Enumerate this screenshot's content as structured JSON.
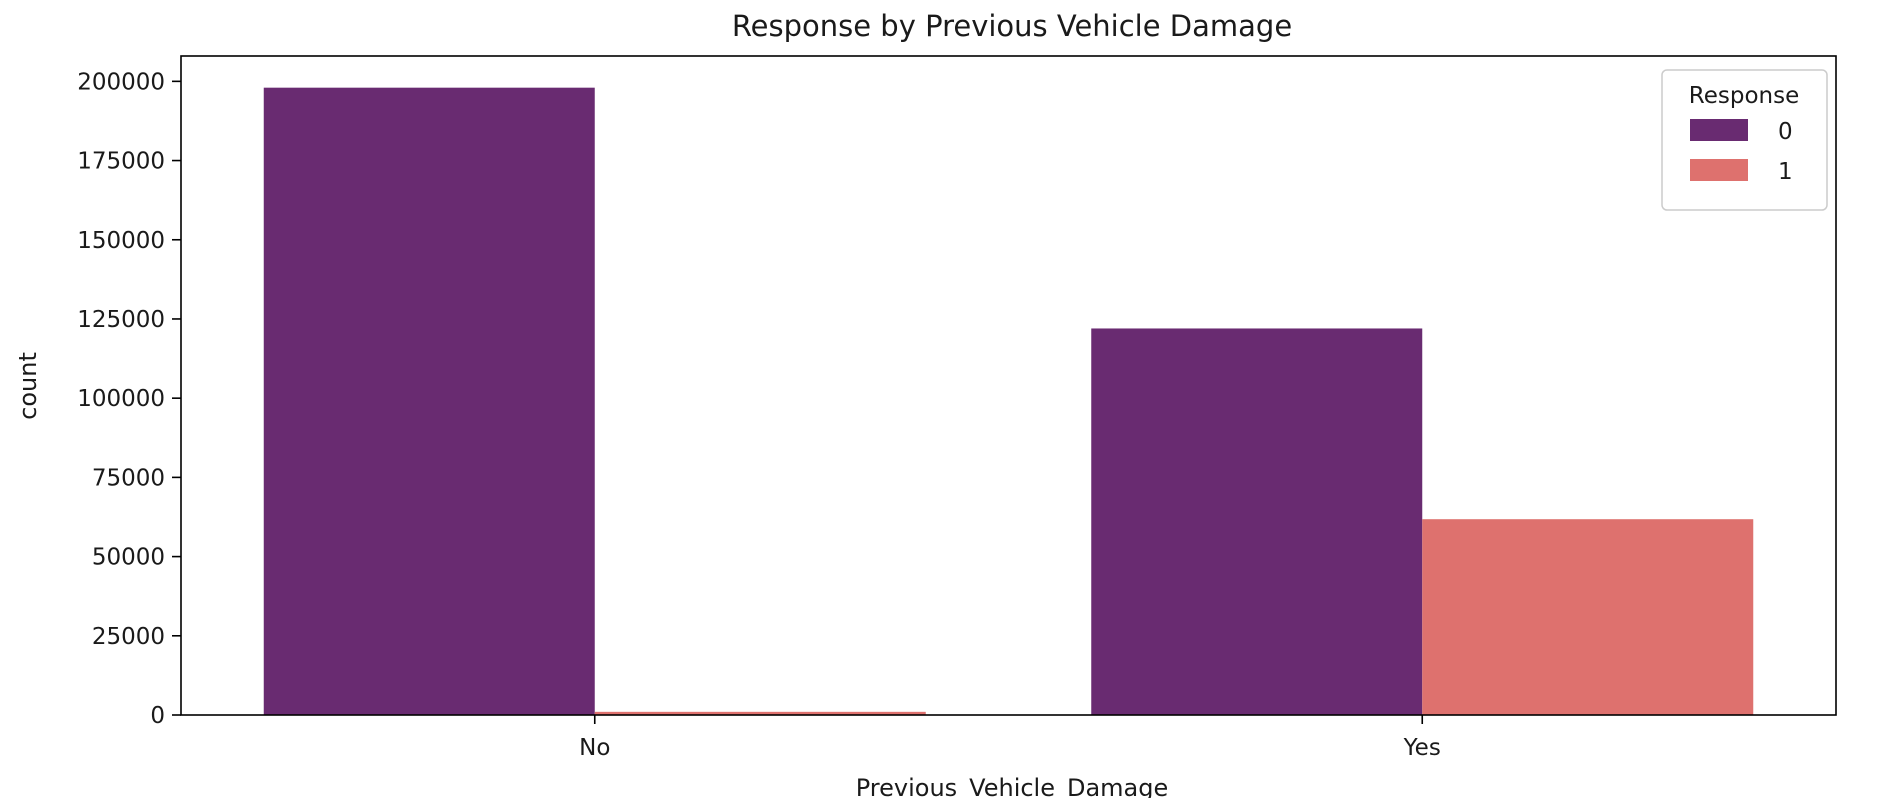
{
  "chart_data": {
    "type": "bar",
    "title": "Response by Previous Vehicle Damage",
    "xlabel": "Previous_Vehicle_Damage",
    "ylabel": "count",
    "categories": [
      "No",
      "Yes"
    ],
    "series": [
      {
        "name": "0",
        "color": "#692b71",
        "values": [
          198000,
          122000
        ]
      },
      {
        "name": "1",
        "color": "#de716e",
        "values": [
          1000,
          61800
        ]
      }
    ],
    "ylim": [
      0,
      208000
    ],
    "yticks": [
      0,
      25000,
      50000,
      75000,
      100000,
      125000,
      150000,
      175000,
      200000
    ],
    "ytick_labels": [
      "0",
      "25000",
      "50000",
      "75000",
      "100000",
      "125000",
      "150000",
      "175000",
      "200000"
    ],
    "legend": {
      "title": "Response",
      "position": "top-right"
    },
    "grid": false
  }
}
